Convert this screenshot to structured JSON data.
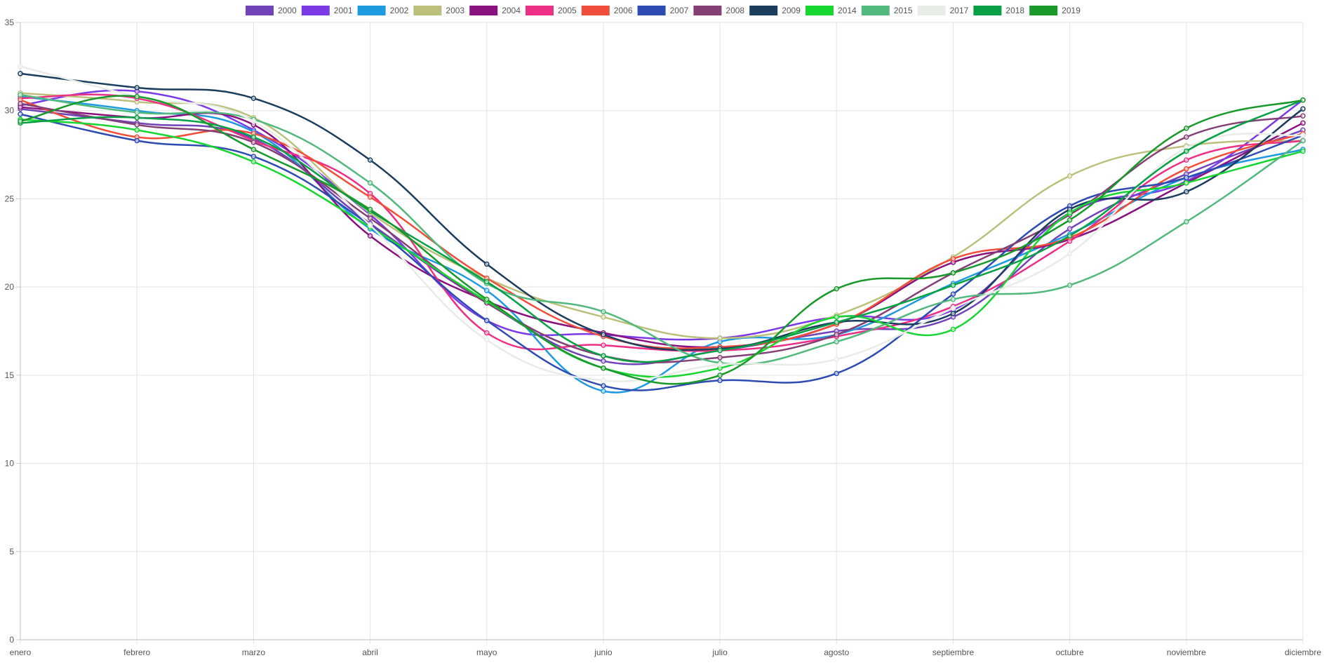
{
  "chart_data": {
    "type": "line",
    "title": "",
    "xlabel": "",
    "ylabel": "",
    "ylim": [
      0,
      35
    ],
    "yticks": [
      0,
      5,
      10,
      15,
      20,
      25,
      30,
      35
    ],
    "grid": true,
    "legend_position": "top",
    "categories": [
      "enero",
      "febrero",
      "marzo",
      "abril",
      "mayo",
      "junio",
      "julio",
      "agosto",
      "septiembre",
      "octubre",
      "noviembre",
      "diciembre"
    ],
    "series": [
      {
        "name": "2000",
        "color": "#7043b8",
        "values": [
          30.1,
          29.3,
          28.4,
          23.6,
          19.1,
          15.8,
          16.4,
          17.5,
          18.3,
          23.3,
          26.4,
          28.9
        ]
      },
      {
        "name": "2001",
        "color": "#7c3ae6",
        "values": [
          30.3,
          31.1,
          28.9,
          24.1,
          18.1,
          17.3,
          17.1,
          18.3,
          18.7,
          24.2,
          26.0,
          30.6
        ]
      },
      {
        "name": "2002",
        "color": "#1f9ae0",
        "values": [
          30.8,
          30.0,
          28.8,
          23.3,
          19.8,
          14.1,
          16.9,
          17.3,
          20.2,
          23.0,
          26.2,
          27.8
        ]
      },
      {
        "name": "2003",
        "color": "#bcc07c",
        "values": [
          31.0,
          30.5,
          29.6,
          24.2,
          20.5,
          18.3,
          17.1,
          18.4,
          21.7,
          26.3,
          28.0,
          28.3
        ]
      },
      {
        "name": "2004",
        "color": "#8a1280",
        "values": [
          30.2,
          29.6,
          29.2,
          22.9,
          19.2,
          17.4,
          16.6,
          17.9,
          21.4,
          22.7,
          25.9,
          29.3
        ]
      },
      {
        "name": "2005",
        "color": "#ed2f86",
        "values": [
          30.7,
          30.7,
          28.3,
          25.3,
          17.4,
          16.7,
          16.4,
          17.2,
          18.9,
          22.6,
          27.2,
          28.3
        ]
      },
      {
        "name": "2006",
        "color": "#f04e3a",
        "values": [
          30.6,
          28.5,
          28.7,
          25.1,
          20.5,
          17.2,
          16.6,
          17.9,
          21.6,
          22.8,
          26.7,
          28.7
        ]
      },
      {
        "name": "2007",
        "color": "#2d4bb2",
        "values": [
          29.8,
          28.3,
          27.4,
          23.5,
          18.1,
          14.4,
          14.7,
          15.1,
          19.6,
          24.6,
          26.2,
          28.6
        ]
      },
      {
        "name": "2008",
        "color": "#843f75",
        "values": [
          30.4,
          29.2,
          28.2,
          23.9,
          19.1,
          16.1,
          16.0,
          17.3,
          20.8,
          24.1,
          28.5,
          29.7
        ]
      },
      {
        "name": "2009",
        "color": "#1b3d5e",
        "values": [
          32.1,
          31.3,
          30.7,
          27.2,
          21.3,
          17.3,
          16.5,
          18.0,
          18.5,
          24.4,
          25.4,
          30.1
        ]
      },
      {
        "name": "2014",
        "color": "#16d62f",
        "values": [
          29.5,
          28.9,
          27.1,
          23.4,
          19.2,
          15.4,
          15.4,
          18.3,
          17.6,
          24.2,
          25.9,
          27.7
        ]
      },
      {
        "name": "2015",
        "color": "#52b87e",
        "values": [
          30.9,
          29.9,
          29.5,
          25.9,
          20.2,
          18.6,
          15.7,
          16.9,
          19.3,
          20.1,
          23.7,
          28.3
        ]
      },
      {
        "name": "2017",
        "color": "#e8ece6",
        "values": [
          32.5,
          30.8,
          29.4,
          23.5,
          17.0,
          14.7,
          15.6,
          15.9,
          18.8,
          21.9,
          27.9,
          28.6
        ]
      },
      {
        "name": "2018",
        "color": "#08a045",
        "values": [
          29.3,
          29.6,
          28.5,
          24.3,
          20.3,
          16.1,
          16.4,
          18.0,
          20.1,
          22.9,
          27.7,
          30.6
        ]
      },
      {
        "name": "2019",
        "color": "#19982b",
        "values": [
          29.4,
          30.8,
          27.8,
          24.4,
          19.3,
          15.4,
          15.0,
          19.9,
          20.8,
          23.8,
          29.0,
          30.6
        ]
      }
    ]
  }
}
